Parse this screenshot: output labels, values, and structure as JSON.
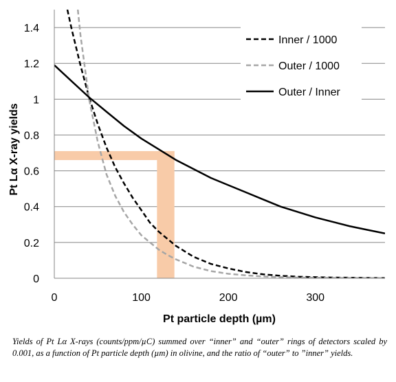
{
  "chart_data": {
    "type": "line",
    "title": "",
    "xlabel": "Pt particle depth (µm)",
    "ylabel": "Pt Lα X-ray yields",
    "xlim": [
      0,
      380
    ],
    "ylim": [
      0,
      1.5
    ],
    "x_ticks": [
      "0",
      "100",
      "200",
      "300"
    ],
    "y_ticks": [
      "0",
      "0.2",
      "0.4",
      "0.6",
      "0.8",
      "1",
      "1.2",
      "1.4"
    ],
    "grid": "horizontal",
    "legend_position": "top-right",
    "series": [
      {
        "name": "Inner / 1000",
        "style": "dashed",
        "color": "#000000",
        "x": [
          15,
          20,
          30,
          40,
          50,
          60,
          70,
          80,
          90,
          100,
          110,
          120,
          130,
          140,
          150,
          160,
          180,
          200,
          220,
          240,
          260,
          280,
          300,
          320,
          340,
          360,
          380
        ],
        "y": [
          1.5,
          1.39,
          1.19,
          1.01,
          0.86,
          0.73,
          0.62,
          0.53,
          0.45,
          0.38,
          0.31,
          0.26,
          0.22,
          0.18,
          0.15,
          0.12,
          0.08,
          0.055,
          0.035,
          0.022,
          0.014,
          0.009,
          0.006,
          0.004,
          0.003,
          0.002,
          0.001
        ]
      },
      {
        "name": "Outer / 1000",
        "style": "dashed",
        "color": "#a6a6a6",
        "x": [
          27,
          30,
          40,
          50,
          60,
          70,
          80,
          90,
          100,
          110,
          120,
          130,
          140,
          150,
          160,
          180,
          200,
          220,
          240,
          260,
          280,
          300,
          320,
          340,
          360,
          380
        ],
        "y": [
          1.5,
          1.36,
          1.0,
          0.76,
          0.58,
          0.46,
          0.37,
          0.3,
          0.24,
          0.2,
          0.16,
          0.13,
          0.105,
          0.085,
          0.065,
          0.04,
          0.025,
          0.016,
          0.01,
          0.006,
          0.004,
          0.003,
          0.002,
          0.0015,
          0.001,
          0.001
        ]
      },
      {
        "name": "Outer / Inner",
        "style": "solid",
        "color": "#000000",
        "x": [
          0,
          20,
          40,
          60,
          80,
          100,
          120,
          140,
          160,
          180,
          200,
          220,
          240,
          260,
          280,
          300,
          320,
          340,
          360,
          380
        ],
        "y": [
          1.19,
          1.1,
          1.01,
          0.93,
          0.85,
          0.78,
          0.72,
          0.66,
          0.61,
          0.56,
          0.52,
          0.48,
          0.44,
          0.4,
          0.37,
          0.34,
          0.315,
          0.29,
          0.27,
          0.25
        ]
      }
    ],
    "highlight": {
      "color": "#f8cba8",
      "horizontal_band": {
        "x": [
          0,
          138
        ],
        "y": [
          0.66,
          0.71
        ]
      },
      "vertical_band": {
        "x": [
          118,
          138
        ],
        "y": [
          0,
          0.71
        ]
      }
    }
  },
  "caption": "Yields of Pt Lα X-rays (counts/ppm/µC) summed over “inner” and “outer” rings of detectors scaled by 0.001, as a function of Pt particle depth (µm) in olivine, and the ratio of “outer” to ”inner” yields."
}
